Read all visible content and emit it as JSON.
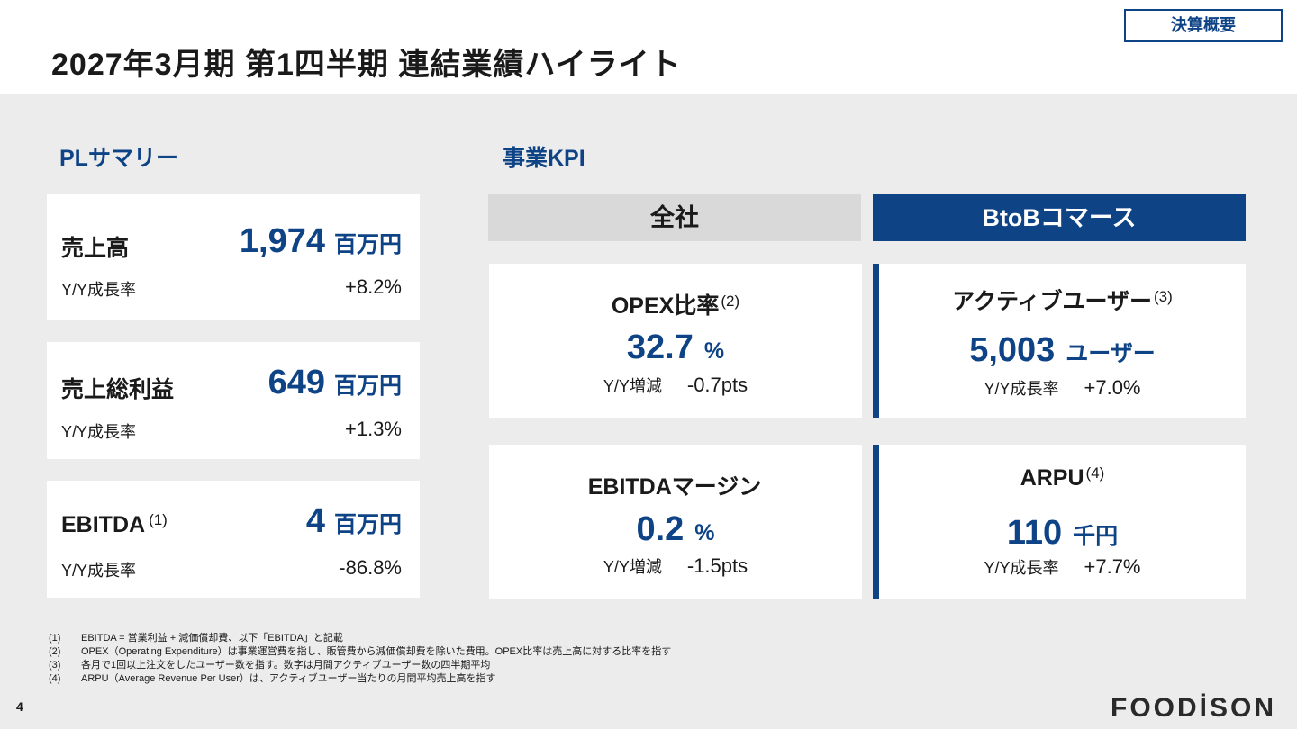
{
  "header": {
    "title": "2027年3月期 第1四半期 連結業績ハイライト",
    "badge": "決算概要"
  },
  "pl_summary": {
    "title": "PLサマリー",
    "cards": [
      {
        "label": "売上高",
        "sup": "",
        "value": "1,974",
        "unit": "百万円",
        "sub_label": "Y/Y成長率",
        "sub_value": "+8.2%"
      },
      {
        "label": "売上総利益",
        "sup": "",
        "value": "649",
        "unit": "百万円",
        "sub_label": "Y/Y成長率",
        "sub_value": "+1.3%"
      },
      {
        "label": "EBITDA",
        "sup": "(1)",
        "value": "4",
        "unit": "百万円",
        "sub_label": "Y/Y成長率",
        "sub_value": "-86.8%"
      }
    ]
  },
  "kpi": {
    "title": "事業KPI",
    "columns": [
      "全社",
      "BtoBコマース"
    ],
    "cards": [
      {
        "label": "OPEX比率",
        "sup": "(2)",
        "value": "32.7",
        "unit": "%",
        "sub_label": "Y/Y増減",
        "sub_value": "-0.7pts"
      },
      {
        "label": "アクティブユーザー",
        "sup": "(3)",
        "value": "5,003",
        "unit": "ユーザー",
        "sub_label": "Y/Y成長率",
        "sub_value": "+7.0%"
      },
      {
        "label": "EBITDAマージン",
        "sup": "",
        "value": "0.2",
        "unit": "%",
        "sub_label": "Y/Y増減",
        "sub_value": "-1.5pts"
      },
      {
        "label": "ARPU",
        "sup": "(4)",
        "value": "110",
        "unit": "千円",
        "sub_label": "Y/Y成長率",
        "sub_value": "+7.7%"
      }
    ]
  },
  "footnotes": [
    {
      "num": "(1)",
      "text": "EBITDA = 営業利益 + 減価償却費、以下「EBITDA」と記載"
    },
    {
      "num": "(2)",
      "text": "OPEX（Operating Expenditure）は事業運営費を指し、販管費から減価償却費を除いた費用。OPEX比率は売上高に対する比率を指す"
    },
    {
      "num": "(3)",
      "text": "各月で1回以上注文をしたユーザー数を指す。数字は月間アクティブユーザー数の四半期平均"
    },
    {
      "num": "(4)",
      "text": "ARPU（Average Revenue Per User）は、アクティブユーザー当たりの月間平均売上高を指す"
    }
  ],
  "page_number": "4",
  "logo": "FOODİSON"
}
